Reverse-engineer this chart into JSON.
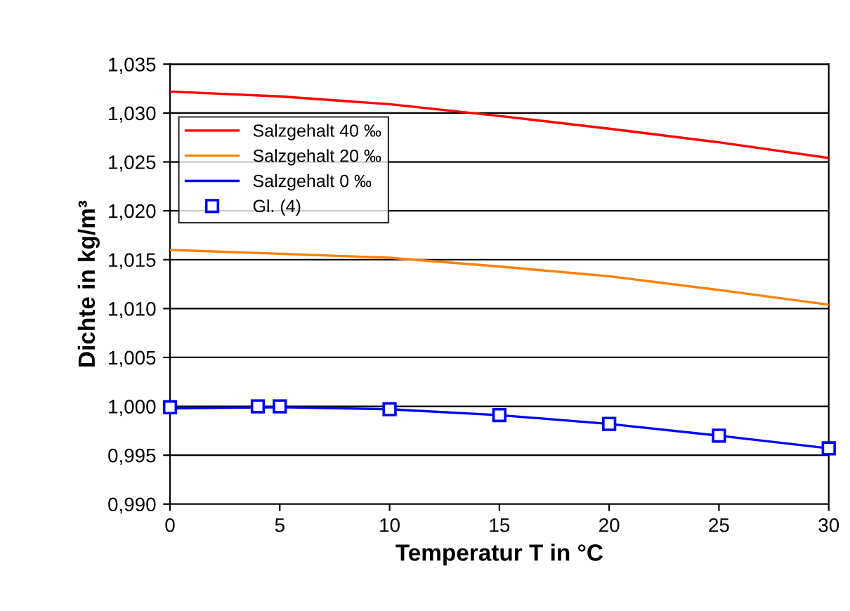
{
  "chart_data": {
    "type": "line",
    "xlabel": "Temperatur T in °C",
    "ylabel": "Dichte in kg/m³",
    "x": [
      0,
      4,
      5,
      10,
      15,
      20,
      25,
      30
    ],
    "series": [
      {
        "name": "Salzgehalt 40 ‰",
        "color": "#ff0000",
        "x": [
          0,
          5,
          10,
          15,
          20,
          25,
          30
        ],
        "values": [
          1.0322,
          1.0317,
          1.0309,
          1.0297,
          1.0284,
          1.027,
          1.0254
        ]
      },
      {
        "name": "Salzgehalt 20 ‰",
        "color": "#ff8000",
        "x": [
          0,
          5,
          10,
          15,
          20,
          25,
          30
        ],
        "values": [
          1.016,
          1.0156,
          1.0152,
          1.0143,
          1.0133,
          1.0119,
          1.0104
        ]
      },
      {
        "name": "Salzgehalt 0 ‰",
        "color": "#0000ff",
        "x": [
          0,
          5,
          10,
          15,
          20,
          25,
          30
        ],
        "values": [
          0.9998,
          0.9999,
          0.9997,
          0.9991,
          0.9982,
          0.997,
          0.9957
        ]
      },
      {
        "name": "Gl. (4)",
        "type": "scatter",
        "marker": "square",
        "color": "#0000ff",
        "values": [
          0.9999,
          1.0,
          1.0,
          0.9997,
          0.9991,
          0.9982,
          0.997,
          0.9957
        ]
      }
    ],
    "xlim": [
      0,
      30
    ],
    "xticks": [
      0,
      5,
      10,
      15,
      20,
      25,
      30
    ],
    "ylim": [
      0.99,
      1.035
    ],
    "yticks": [
      {
        "value": 0.99,
        "label": "0,990"
      },
      {
        "value": 0.995,
        "label": "0,995"
      },
      {
        "value": 1.0,
        "label": "1,000"
      },
      {
        "value": 1.005,
        "label": "1,005"
      },
      {
        "value": 1.01,
        "label": "1,010"
      },
      {
        "value": 1.015,
        "label": "1,015"
      },
      {
        "value": 1.02,
        "label": "1,020"
      },
      {
        "value": 1.025,
        "label": "1,025"
      },
      {
        "value": 1.03,
        "label": "1,030"
      },
      {
        "value": 1.035,
        "label": "1,035"
      }
    ],
    "grid": "y",
    "legend": "top left"
  }
}
